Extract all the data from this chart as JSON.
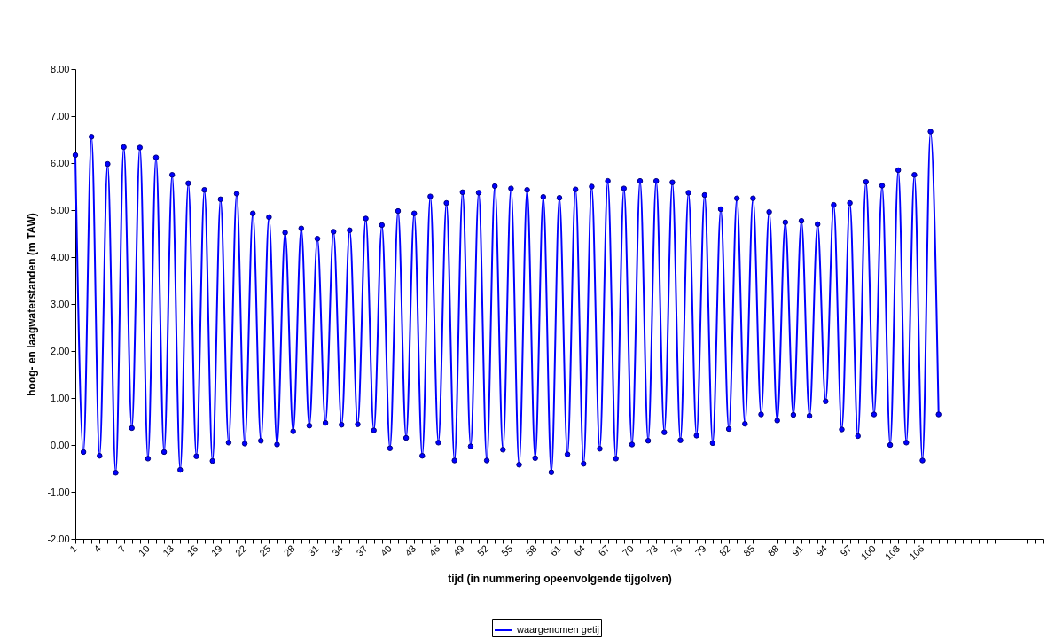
{
  "chart_data": {
    "type": "line",
    "xlabel": "tijd   (in nummering opeenvolgende tijgolven)",
    "ylabel": "hoog- en laagwaterstanden  (m TAW)",
    "categories": [
      "1",
      null,
      null,
      "4",
      null,
      null,
      "7",
      null,
      null,
      "10",
      null,
      null,
      "13",
      null,
      null,
      "16",
      null,
      null,
      "19",
      null,
      null,
      "22",
      null,
      null,
      "25",
      null,
      null,
      "28",
      null,
      null,
      "31",
      null,
      null,
      "34",
      null,
      null,
      "37",
      null,
      null,
      "40",
      null,
      null,
      "43",
      null,
      null,
      "46",
      null,
      null,
      "49",
      null,
      null,
      "52",
      null,
      null,
      "55",
      null,
      null,
      "58",
      null,
      null,
      "61",
      null,
      null,
      "64",
      null,
      null,
      "67",
      null,
      null,
      "70",
      null,
      null,
      "73",
      null,
      null,
      "76",
      null,
      null,
      "79",
      null,
      null,
      "82",
      null,
      null,
      "85",
      null,
      null,
      "88",
      null,
      null,
      "91",
      null,
      null,
      "94",
      null,
      null,
      "97",
      null,
      null,
      "100",
      null,
      null,
      "103",
      null,
      null,
      "106",
      null,
      null,
      null,
      null,
      null,
      null,
      null,
      null,
      null,
      null,
      null,
      null,
      null,
      null,
      null
    ],
    "series": [
      {
        "name": "waargenomen getij",
        "color": "#0000ff",
        "values": [
          6.17,
          -0.15,
          6.56,
          -0.23,
          5.98,
          -0.59,
          6.34,
          0.36,
          6.33,
          -0.29,
          6.12,
          -0.15,
          5.75,
          -0.53,
          5.57,
          -0.24,
          5.43,
          -0.34,
          5.23,
          0.05,
          5.35,
          0.03,
          4.93,
          0.09,
          4.85,
          0.01,
          4.52,
          0.29,
          4.61,
          0.41,
          4.39,
          0.47,
          4.54,
          0.43,
          4.57,
          0.44,
          4.82,
          0.31,
          4.68,
          -0.07,
          4.98,
          0.15,
          4.93,
          -0.23,
          5.29,
          0.05,
          5.15,
          -0.33,
          5.38,
          -0.03,
          5.37,
          -0.33,
          5.51,
          -0.1,
          5.46,
          -0.42,
          5.43,
          -0.28,
          5.28,
          -0.58,
          5.26,
          -0.2,
          5.44,
          -0.4,
          5.5,
          -0.08,
          5.62,
          -0.29,
          5.46,
          0.01,
          5.62,
          0.09,
          5.62,
          0.27,
          5.59,
          0.1,
          5.37,
          0.2,
          5.32,
          0.04,
          5.02,
          0.34,
          5.25,
          0.45,
          5.25,
          0.65,
          4.96,
          0.52,
          4.74,
          0.64,
          4.77,
          0.62,
          4.7,
          0.93,
          5.11,
          0.33,
          5.15,
          0.19,
          5.6,
          0.65,
          5.52,
          0.0,
          5.85,
          0.05,
          5.75,
          -0.33,
          6.67,
          0.65,
          null,
          null,
          null,
          null,
          null,
          null,
          null,
          null,
          null,
          null,
          null,
          null,
          null
        ]
      }
    ],
    "ylim": [
      -2,
      8
    ],
    "yticks": [
      {
        "value": -2,
        "label": "-2.00"
      },
      {
        "value": -1,
        "label": "-1.00"
      },
      {
        "value": 0,
        "label": "0.00"
      },
      {
        "value": 1,
        "label": "1.00"
      },
      {
        "value": 2,
        "label": "2.00"
      },
      {
        "value": 3,
        "label": "3.00"
      },
      {
        "value": 4,
        "label": "4.00"
      },
      {
        "value": 5,
        "label": "5.00"
      },
      {
        "value": 6,
        "label": "6.00"
      },
      {
        "value": 7,
        "label": "7.00"
      },
      {
        "value": 8,
        "label": "8.00"
      }
    ],
    "grid": false,
    "legend": "bottom",
    "marker": "circle",
    "line_style": "solid"
  }
}
